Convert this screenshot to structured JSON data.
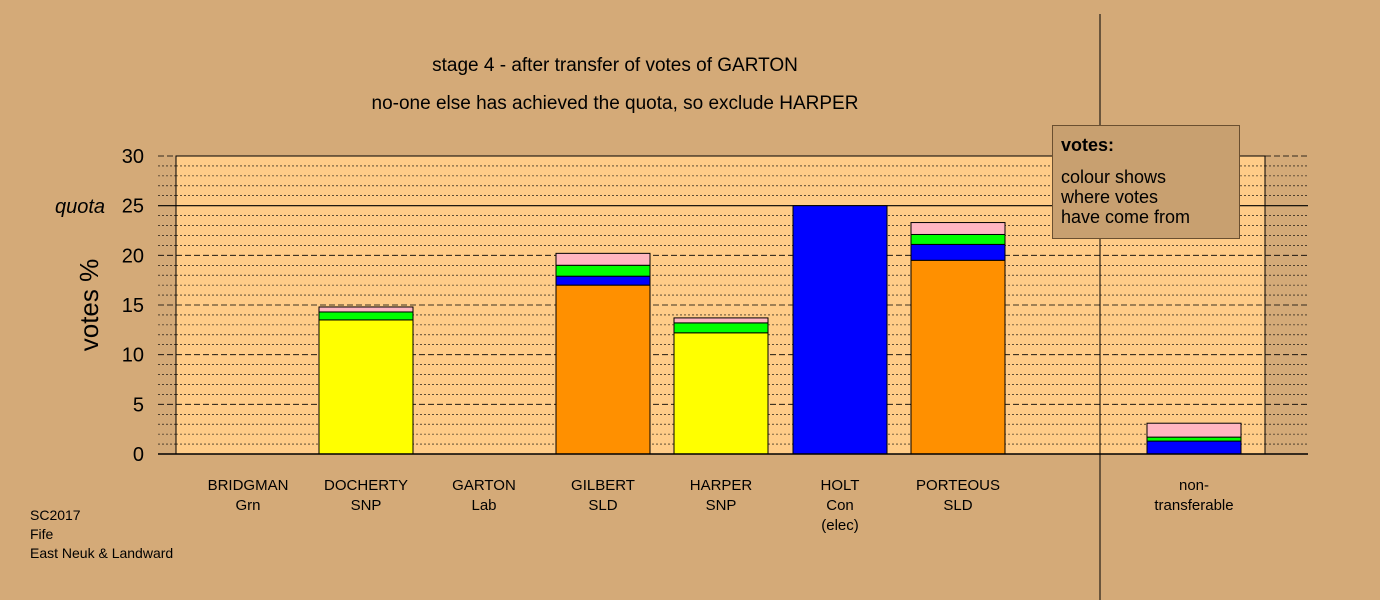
{
  "title_line1": "stage 4 - after transfer of votes of GARTON",
  "title_line2": "no-one else has achieved the quota, so exclude HARPER",
  "footer": {
    "line1": "SC2017",
    "line2": "Fife",
    "line3": "East Neuk & Landward"
  },
  "legend": {
    "title": "votes:",
    "lines": [
      "colour shows",
      "where votes",
      "have come from"
    ]
  },
  "colors": {
    "Grn": "#00ff00",
    "SNP": "#ffff00",
    "Lab": "#ffb6c1",
    "SLD": "#ff9000",
    "Con": "#0000ff",
    "plot_bg": "#ffcc88",
    "page_bg": "#d4aa78"
  },
  "chart_data": {
    "type": "bar",
    "stacked": true,
    "ylabel": "votes %",
    "ylim": [
      0,
      30
    ],
    "yticks": [
      0,
      5,
      10,
      15,
      20,
      25,
      30
    ],
    "quota": {
      "value": 25,
      "label": "quota"
    },
    "categories": [
      {
        "name": "BRIDGMAN",
        "sub": "Grn",
        "sub2": ""
      },
      {
        "name": "DOCHERTY",
        "sub": "SNP",
        "sub2": ""
      },
      {
        "name": "GARTON",
        "sub": "Lab",
        "sub2": ""
      },
      {
        "name": "GILBERT",
        "sub": "SLD",
        "sub2": ""
      },
      {
        "name": "HARPER",
        "sub": "SNP",
        "sub2": ""
      },
      {
        "name": "HOLT",
        "sub": "Con",
        "sub2": "(elec)"
      },
      {
        "name": "PORTEOUS",
        "sub": "SLD",
        "sub2": ""
      },
      {
        "name": "non-",
        "sub": "transferable",
        "sub2": ""
      }
    ],
    "stacks": [
      [],
      [
        {
          "party": "SNP",
          "value": 13.5
        },
        {
          "party": "Grn",
          "value": 0.8
        },
        {
          "party": "Lab",
          "value": 0.5
        }
      ],
      [],
      [
        {
          "party": "SLD",
          "value": 17.0
        },
        {
          "party": "Con",
          "value": 0.9
        },
        {
          "party": "Grn",
          "value": 1.1
        },
        {
          "party": "Lab",
          "value": 1.2
        }
      ],
      [
        {
          "party": "SNP",
          "value": 12.2
        },
        {
          "party": "Grn",
          "value": 1.0
        },
        {
          "party": "Lab",
          "value": 0.5
        }
      ],
      [
        {
          "party": "Con",
          "value": 25.0
        }
      ],
      [
        {
          "party": "SLD",
          "value": 19.5
        },
        {
          "party": "Con",
          "value": 1.6
        },
        {
          "party": "Grn",
          "value": 1.0
        },
        {
          "party": "Lab",
          "value": 1.2
        }
      ],
      [
        {
          "party": "Con",
          "value": 1.3
        },
        {
          "party": "Grn",
          "value": 0.4
        },
        {
          "party": "Lab",
          "value": 1.4
        }
      ]
    ]
  }
}
